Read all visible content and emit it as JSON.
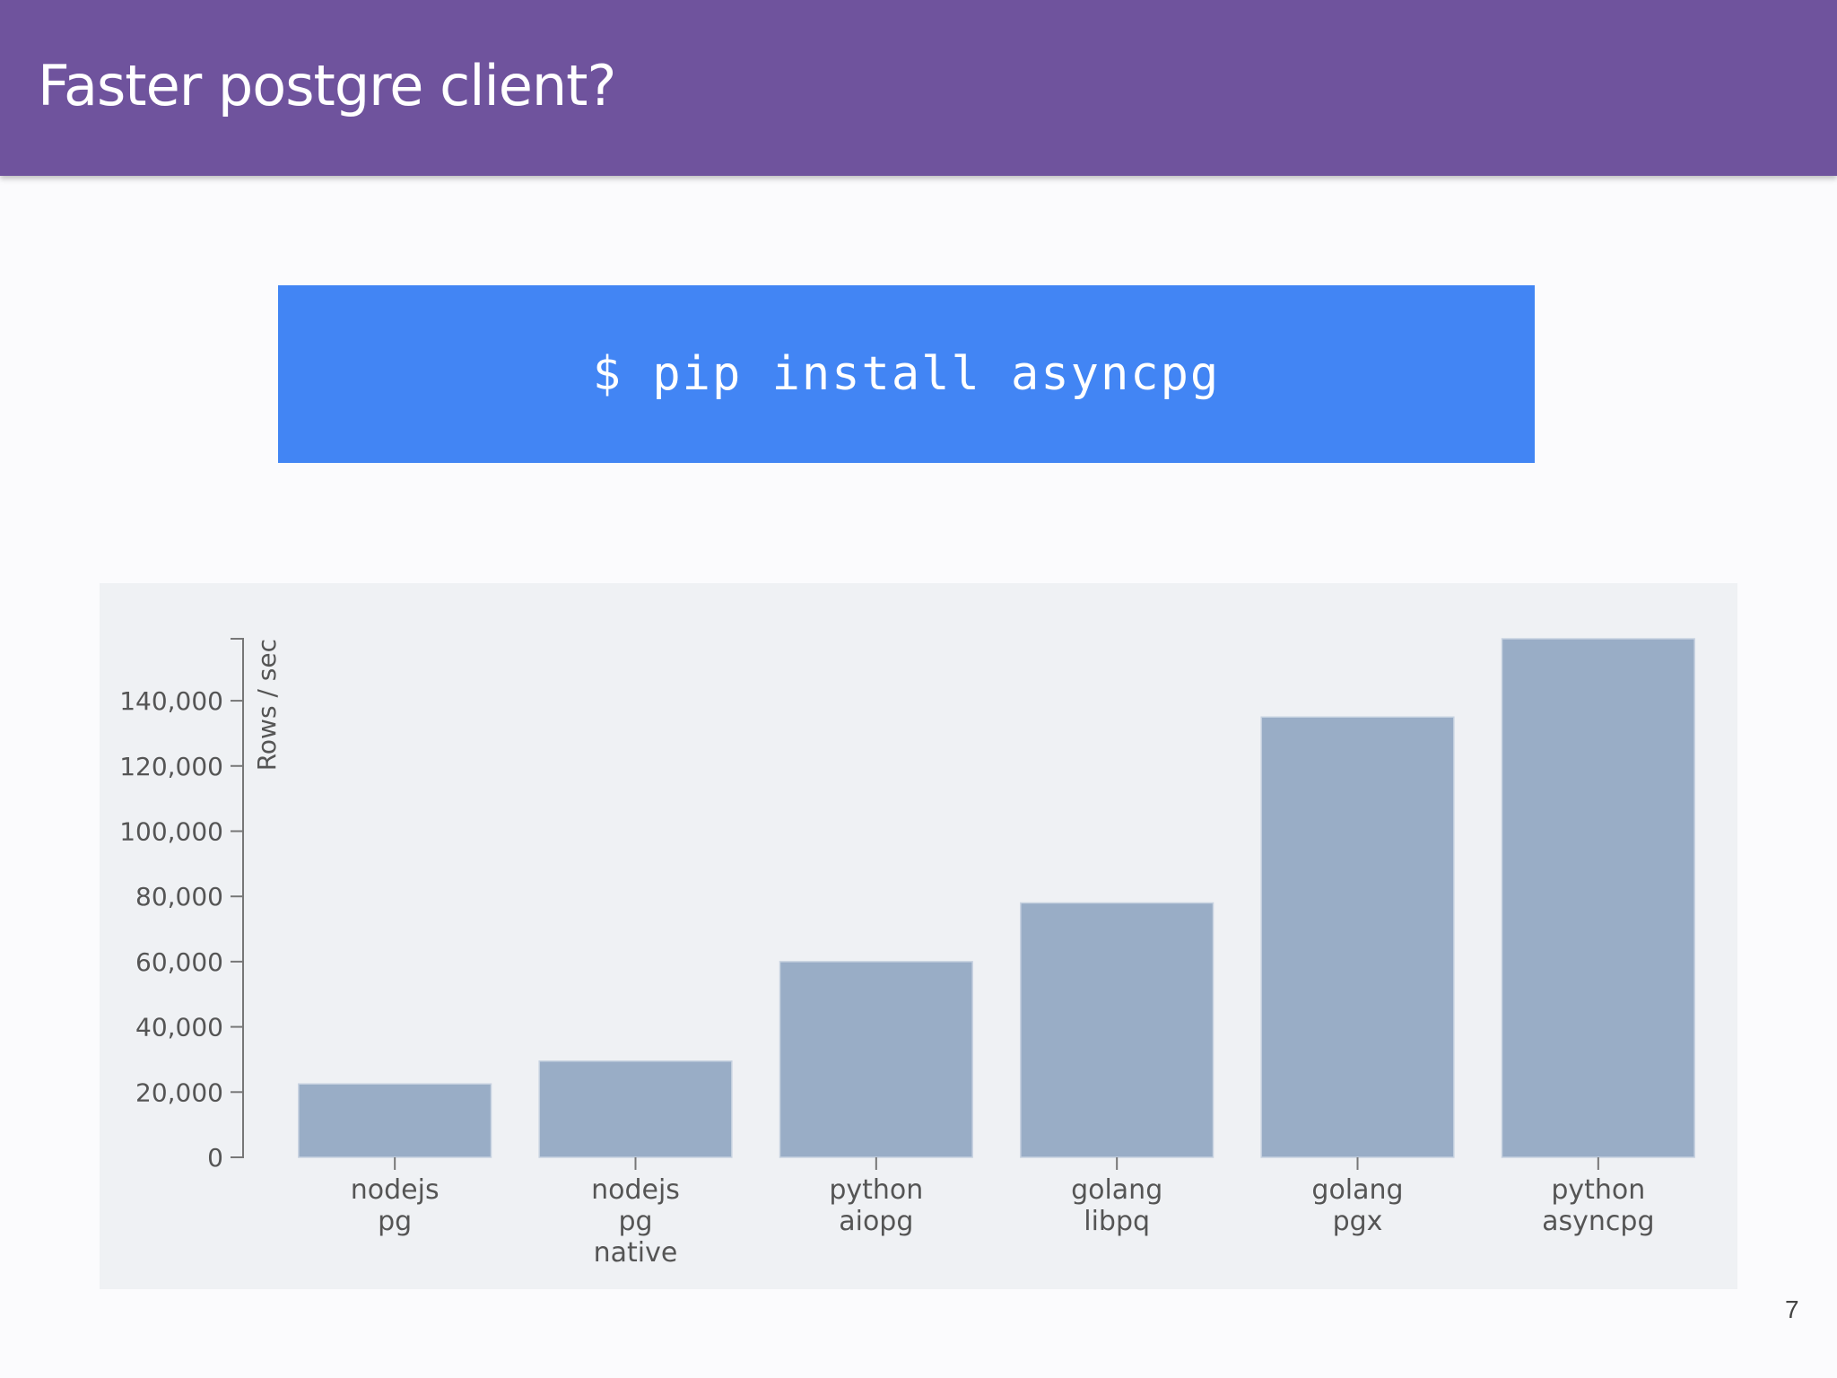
{
  "slide": {
    "title": "Faster postgre client?",
    "command": "$ pip install asyncpg",
    "page_number": "7"
  },
  "colors": {
    "header": "#6f539d",
    "command_box": "#4285f4",
    "bar": "#99adc6",
    "chart_background": "#eff1f4"
  },
  "chart_data": {
    "type": "bar",
    "categories": [
      [
        "nodejs",
        "pg"
      ],
      [
        "nodejs",
        "pg",
        "native"
      ],
      [
        "python",
        "aiopg"
      ],
      [
        "golang",
        "libpq"
      ],
      [
        "golang",
        "pgx"
      ],
      [
        "python",
        "asyncpg"
      ]
    ],
    "values": [
      22500,
      29500,
      60000,
      78000,
      135000,
      159000
    ],
    "ylabel": "Rows / sec",
    "xlabel": "",
    "ylim": [
      0,
      159000
    ],
    "yticks": [
      0,
      20000,
      40000,
      60000,
      80000,
      100000,
      120000,
      140000
    ],
    "ytick_labels": [
      "0",
      "20,000",
      "40,000",
      "60,000",
      "80,000",
      "100,000",
      "120,000",
      "140,000"
    ],
    "grid": false,
    "legend": "none"
  }
}
